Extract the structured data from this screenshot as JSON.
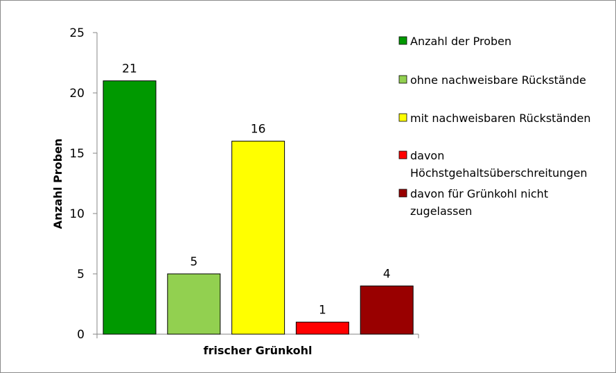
{
  "chart_data": {
    "type": "bar",
    "categories": [
      "frischer Grünkohl"
    ],
    "series": [
      {
        "name": "Anzahl der Proben",
        "values": [
          21
        ],
        "color": "#009900"
      },
      {
        "name": "ohne nachweisbare Rückstände",
        "values": [
          5
        ],
        "color": "#92D050"
      },
      {
        "name": "mit nachweisbaren Rückständen",
        "values": [
          16
        ],
        "color": "#FFFF00"
      },
      {
        "name": "davon Höchstgehaltsüberschreitungen",
        "values": [
          1
        ],
        "color": "#FF0000"
      },
      {
        "name": "davon für Grünkohl nicht zugelassen",
        "values": [
          4
        ],
        "color": "#990000"
      }
    ],
    "data_labels": [
      "21",
      "5",
      "16",
      "1",
      "4"
    ],
    "xlabel": "frischer Grünkohl",
    "ylabel": "Anzahl Proben",
    "ylim": [
      0,
      25
    ],
    "yticks": [
      "0",
      "5",
      "10",
      "15",
      "20",
      "25"
    ],
    "ytick_values": [
      0,
      5,
      10,
      15,
      20,
      25
    ],
    "legend_lines": [
      [
        "Anzahl der Proben"
      ],
      [
        "ohne nachweisbare Rückstände"
      ],
      [
        "mit nachweisbaren Rückständen"
      ],
      [
        "davon",
        "Höchstgehaltsüberschreitungen"
      ],
      [
        "davon für Grünkohl nicht",
        "zugelassen"
      ]
    ],
    "legend_position": "right",
    "grid": false
  }
}
